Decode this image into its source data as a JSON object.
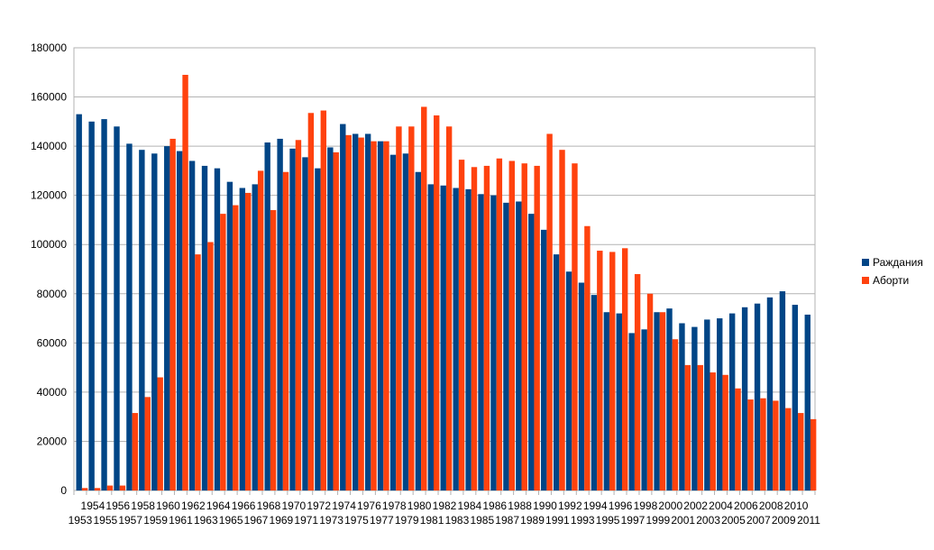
{
  "chart_data": {
    "type": "bar",
    "title": "",
    "xlabel": "",
    "ylabel": "",
    "ylim": [
      0,
      180000
    ],
    "yticks": [
      0,
      20000,
      40000,
      60000,
      80000,
      100000,
      120000,
      140000,
      160000,
      180000
    ],
    "grid": true,
    "legend_position": "right",
    "categories": [
      "1953",
      "1954",
      "1955",
      "1956",
      "1957",
      "1958",
      "1959",
      "1960",
      "1961",
      "1962",
      "1963",
      "1964",
      "1965",
      "1966",
      "1967",
      "1968",
      "1969",
      "1970",
      "1971",
      "1972",
      "1973",
      "1974",
      "1975",
      "1976",
      "1977",
      "1978",
      "1979",
      "1980",
      "1981",
      "1982",
      "1983",
      "1984",
      "1985",
      "1986",
      "1987",
      "1988",
      "1989",
      "1990",
      "1991",
      "1992",
      "1993",
      "1994",
      "1995",
      "1996",
      "1997",
      "1998",
      "1999",
      "2000",
      "2001",
      "2002",
      "2003",
      "2004",
      "2005",
      "2006",
      "2007",
      "2008",
      "2009",
      "2010",
      "2011"
    ],
    "series": [
      {
        "name": "Раждания",
        "color": "#004586",
        "values": [
          153000,
          150000,
          151000,
          148000,
          141000,
          138500,
          137000,
          140000,
          138000,
          134000,
          132000,
          131000,
          125500,
          123000,
          124500,
          141500,
          143000,
          139000,
          135500,
          131000,
          139500,
          149000,
          145000,
          145000,
          142000,
          136500,
          137000,
          129500,
          124500,
          124000,
          123000,
          122500,
          120500,
          120000,
          117000,
          117500,
          112500,
          106000,
          96000,
          89000,
          84500,
          79500,
          72500,
          72000,
          64000,
          65500,
          72500,
          74000,
          68000,
          66500,
          69500,
          70000,
          72000,
          74500,
          76000,
          78500,
          81000,
          75500,
          71500
        ]
      },
      {
        "name": "Аборти",
        "color": "#ff420e",
        "values": [
          1000,
          1000,
          2000,
          2000,
          31500,
          38000,
          46000,
          143000,
          169000,
          96000,
          101000,
          112500,
          116000,
          121000,
          130000,
          114000,
          129500,
          142500,
          153500,
          154500,
          137500,
          144500,
          143500,
          142000,
          142000,
          148000,
          148000,
          156000,
          152500,
          148000,
          134500,
          131500,
          132000,
          135000,
          134000,
          133000,
          132000,
          145000,
          138500,
          133000,
          107500,
          97500,
          97000,
          98500,
          88000,
          80000,
          72500,
          61500,
          51000,
          51000,
          48000,
          47000,
          41500,
          37000,
          37500,
          36500,
          33500,
          31500,
          29000
        ]
      }
    ]
  }
}
